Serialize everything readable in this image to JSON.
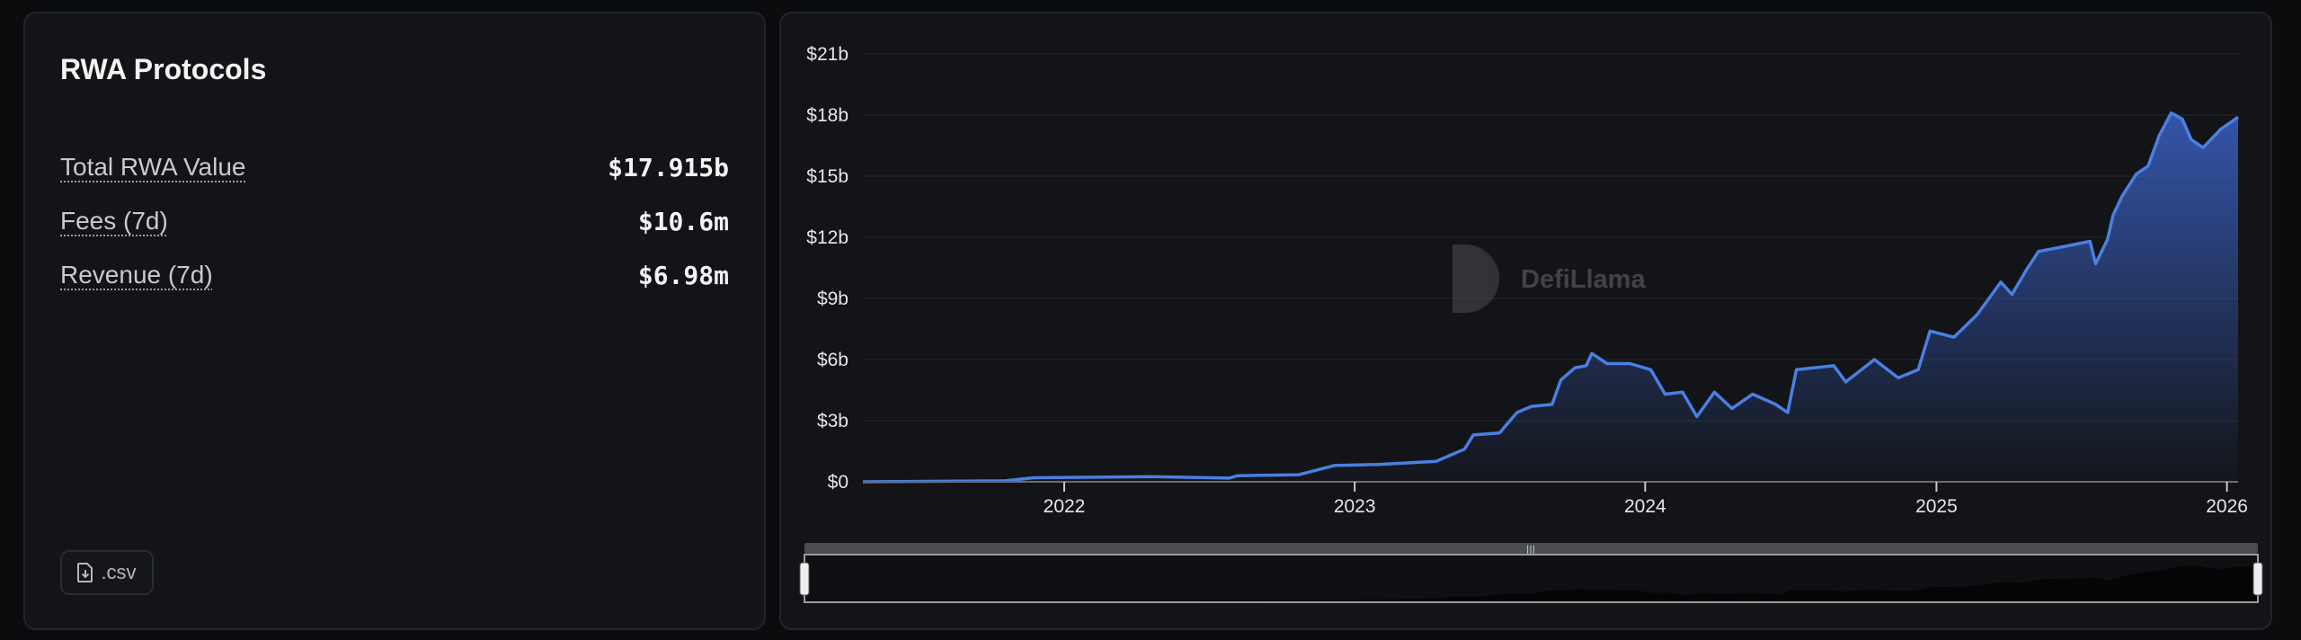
{
  "panel": {
    "title": "RWA Protocols",
    "metrics": [
      {
        "label": "Total RWA Value",
        "value": "$17.915b"
      },
      {
        "label": "Fees (7d)",
        "value": "$10.6m"
      },
      {
        "label": "Revenue (7d)",
        "value": "$6.98m"
      }
    ],
    "csv_button": ".csv",
    "csv_icon": "file-download-icon"
  },
  "watermark": "DefiLlama",
  "colors": {
    "line": "#4a7fe3",
    "fill_top": "#3558b0",
    "background": "#131417"
  },
  "chart_data": {
    "type": "area",
    "title": "",
    "xlabel": "",
    "ylabel": "",
    "ylim": [
      0,
      21
    ],
    "yunit": "billion USD",
    "y_ticks": [
      "$0",
      "$3b",
      "$6b",
      "$9b",
      "$12b",
      "$15b",
      "$18b",
      "$21b"
    ],
    "x_ticks": [
      "2022",
      "2023",
      "2024",
      "2025",
      "2026"
    ],
    "xlim": [
      "2021-04-23",
      "2026-01-15"
    ],
    "grid": true,
    "legend": "none",
    "navigator": true,
    "points": [
      [
        "2021-04-23",
        0
      ],
      [
        "2021-10-19",
        0.05
      ],
      [
        "2021-11-24",
        0.2
      ],
      [
        "2022-04-20",
        0.25
      ],
      [
        "2022-07-27",
        0.18
      ],
      [
        "2022-08-07",
        0.3
      ],
      [
        "2022-10-23",
        0.35
      ],
      [
        "2022-12-06",
        0.8
      ],
      [
        "2023-01-30",
        0.85
      ],
      [
        "2023-04-13",
        1.0
      ],
      [
        "2023-05-19",
        1.6
      ],
      [
        "2023-05-30",
        2.3
      ],
      [
        "2023-07-02",
        2.4
      ],
      [
        "2023-07-24",
        3.4
      ],
      [
        "2023-08-11",
        3.7
      ],
      [
        "2023-09-06",
        3.8
      ],
      [
        "2023-09-17",
        5.0
      ],
      [
        "2023-10-05",
        5.6
      ],
      [
        "2023-10-19",
        5.7
      ],
      [
        "2023-10-26",
        6.3
      ],
      [
        "2023-11-14",
        5.8
      ],
      [
        "2023-12-13",
        5.8
      ],
      [
        "2024-01-08",
        5.5
      ],
      [
        "2024-01-26",
        4.3
      ],
      [
        "2024-02-17",
        4.4
      ],
      [
        "2024-03-06",
        3.2
      ],
      [
        "2024-03-28",
        4.4
      ],
      [
        "2024-04-19",
        3.6
      ],
      [
        "2024-05-15",
        4.3
      ],
      [
        "2024-06-13",
        3.8
      ],
      [
        "2024-06-28",
        3.4
      ],
      [
        "2024-07-09",
        5.5
      ],
      [
        "2024-08-25",
        5.7
      ],
      [
        "2024-09-09",
        4.9
      ],
      [
        "2024-10-15",
        6.0
      ],
      [
        "2024-11-14",
        5.1
      ],
      [
        "2024-12-09",
        5.5
      ],
      [
        "2024-12-24",
        7.4
      ],
      [
        "2025-01-23",
        7.1
      ],
      [
        "2025-02-21",
        8.2
      ],
      [
        "2025-03-23",
        9.8
      ],
      [
        "2025-04-06",
        9.2
      ],
      [
        "2025-04-24",
        10.4
      ],
      [
        "2025-05-09",
        11.3
      ],
      [
        "2025-07-13",
        11.8
      ],
      [
        "2025-07-20",
        10.7
      ],
      [
        "2025-08-04",
        11.9
      ],
      [
        "2025-08-11",
        13.1
      ],
      [
        "2025-08-22",
        14.0
      ],
      [
        "2025-09-09",
        15.1
      ],
      [
        "2025-09-24",
        15.5
      ],
      [
        "2025-10-08",
        17.0
      ],
      [
        "2025-10-23",
        18.1
      ],
      [
        "2025-11-06",
        17.8
      ],
      [
        "2025-11-17",
        16.8
      ],
      [
        "2025-12-02",
        16.4
      ],
      [
        "2025-12-24",
        17.3
      ],
      [
        "2026-01-15",
        17.9
      ]
    ]
  }
}
